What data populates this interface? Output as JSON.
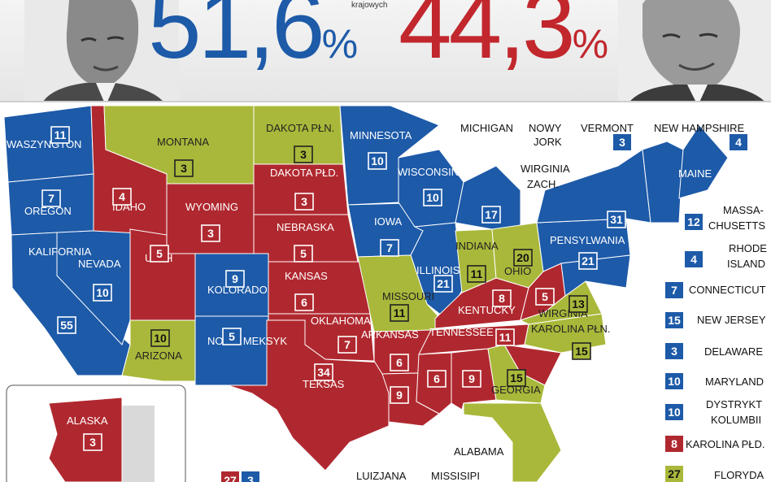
{
  "header": {
    "dem_value": "51,6",
    "rep_value": "44,3",
    "percent_sign": "%",
    "note": "krajowych"
  },
  "colors": {
    "dem": "#1d5aa8",
    "rep": "#b0282f",
    "swing": "#a9b83a"
  },
  "states": [
    {
      "id": "wa",
      "name": "WASZYNGTON",
      "ev": "11",
      "party": "dem"
    },
    {
      "id": "or",
      "name": "OREGON",
      "ev": "7",
      "party": "dem"
    },
    {
      "id": "ca",
      "name": "KALIFORNIA",
      "ev": "55",
      "party": "dem"
    },
    {
      "id": "nv",
      "name": "NEVADA",
      "ev": "10",
      "party": "dem"
    },
    {
      "id": "id",
      "name": "IDAHO",
      "ev": "4",
      "party": "rep"
    },
    {
      "id": "mt",
      "name": "MONTANA",
      "ev": "3",
      "party": "swing"
    },
    {
      "id": "wy",
      "name": "WYOMING",
      "ev": "3",
      "party": "rep"
    },
    {
      "id": "ut",
      "name": "UTAH",
      "ev": "5",
      "party": "rep"
    },
    {
      "id": "az",
      "name": "ARIZONA",
      "ev": "10",
      "party": "swing"
    },
    {
      "id": "co",
      "name": "KOLORADO",
      "ev": "9",
      "party": "dem"
    },
    {
      "id": "nm",
      "name": "NOWY MEKSYK",
      "ev": "5",
      "party": "dem"
    },
    {
      "id": "nd",
      "name": "DAKOTA PŁN.",
      "ev": "3",
      "party": "swing"
    },
    {
      "id": "sd",
      "name": "DAKOTA PŁD.",
      "ev": "3",
      "party": "rep"
    },
    {
      "id": "ne",
      "name": "NEBRASKA",
      "ev": "5",
      "party": "rep"
    },
    {
      "id": "ks",
      "name": "KANSAS",
      "ev": "6",
      "party": "rep"
    },
    {
      "id": "ok",
      "name": "OKLAHOMA",
      "ev": "7",
      "party": "rep"
    },
    {
      "id": "tx",
      "name": "TEKSAS",
      "ev": "34",
      "party": "rep"
    },
    {
      "id": "mn",
      "name": "MINNESOTA",
      "ev": "10",
      "party": "dem"
    },
    {
      "id": "ia",
      "name": "IOWA",
      "ev": "7",
      "party": "dem"
    },
    {
      "id": "mo",
      "name": "MISSOURI",
      "ev": "11",
      "party": "swing"
    },
    {
      "id": "ar",
      "name": "ARKANSAS",
      "ev": "6",
      "party": "rep"
    },
    {
      "id": "la",
      "name": "LUIZJANA",
      "ev": "9",
      "party": "rep"
    },
    {
      "id": "wi",
      "name": "WISCONSIN",
      "ev": "10",
      "party": "dem"
    },
    {
      "id": "il",
      "name": "ILLINOIS",
      "ev": "21",
      "party": "dem"
    },
    {
      "id": "ms",
      "name": "MISSISIPI",
      "ev": "6",
      "party": "rep"
    },
    {
      "id": "mi",
      "name": "MICHIGAN",
      "ev": "17",
      "party": "dem"
    },
    {
      "id": "in",
      "name": "INDIANA",
      "ev": "11",
      "party": "swing"
    },
    {
      "id": "oh",
      "name": "OHIO",
      "ev": "20",
      "party": "swing"
    },
    {
      "id": "ky",
      "name": "KENTUCKY",
      "ev": "8",
      "party": "rep"
    },
    {
      "id": "tn",
      "name": "TENNESSEE",
      "ev": "11",
      "party": "rep"
    },
    {
      "id": "al",
      "name": "ALABAMA",
      "ev": "9",
      "party": "rep"
    },
    {
      "id": "ga",
      "name": "GEORGIA",
      "ev": "15",
      "party": "swing"
    },
    {
      "id": "fl",
      "name": "FLORYDA",
      "ev": "27",
      "party": "swing"
    },
    {
      "id": "sc",
      "name": "KAROLINA PŁD.",
      "ev": "8",
      "party": "rep"
    },
    {
      "id": "nc",
      "name": "KAROLINA PŁN.",
      "ev": "15",
      "party": "swing"
    },
    {
      "id": "va",
      "name": "WIRGINIA",
      "ev": "13",
      "party": "swing"
    },
    {
      "id": "wv",
      "name": "WIRGINIA ZACH.",
      "ev": "5",
      "party": "rep"
    },
    {
      "id": "pa",
      "name": "PENSYLWANIA",
      "ev": "21",
      "party": "dem"
    },
    {
      "id": "ny",
      "name": "NOWY JORK",
      "ev": "31",
      "party": "dem"
    },
    {
      "id": "me",
      "name": "MAINE",
      "ev": "4",
      "party": "dem"
    },
    {
      "id": "ak",
      "name": "ALASKA",
      "ev": "3",
      "party": "rep"
    }
  ],
  "side_labels": {
    "michigan": "MICHIGAN",
    "nowy_jork_1": "NOWY",
    "nowy_jork_2": "JORK",
    "vermont": "VERMONT",
    "new_hampshire": "NEW HAMPSHIRE",
    "wirginia_zach_1": "WIRGINIA",
    "wirginia_zach_2": "ZACH.",
    "massachusetts_1": "MASSA-",
    "massachusetts_2": "CHUSETTS",
    "rhode_island_1": "RHODE",
    "rhode_island_2": "ISLAND",
    "connecticut": "CONNECTICUT",
    "new_jersey": "NEW JERSEY",
    "delaware": "DELAWARE",
    "maryland": "MARYLAND",
    "dc_1": "DYSTRYKT",
    "dc_2": "KOLUMBII",
    "karolina_pld": "KAROLINA PŁD.",
    "floryda": "FLORYDA",
    "luizjana": "LUIZJANA",
    "missisipi": "MISSISIPI",
    "alabama": "ALABAMA"
  },
  "side_ev": {
    "vermont": "3",
    "new_hampshire": "4",
    "massachusetts": "12",
    "rhode_island": "4",
    "connecticut": "7",
    "new_jersey": "15",
    "delaware": "3",
    "maryland": "10",
    "dc": "10",
    "karolina_pld": "8",
    "floryda": "27",
    "bottom_red": "27",
    "bottom_blue": "3"
  }
}
